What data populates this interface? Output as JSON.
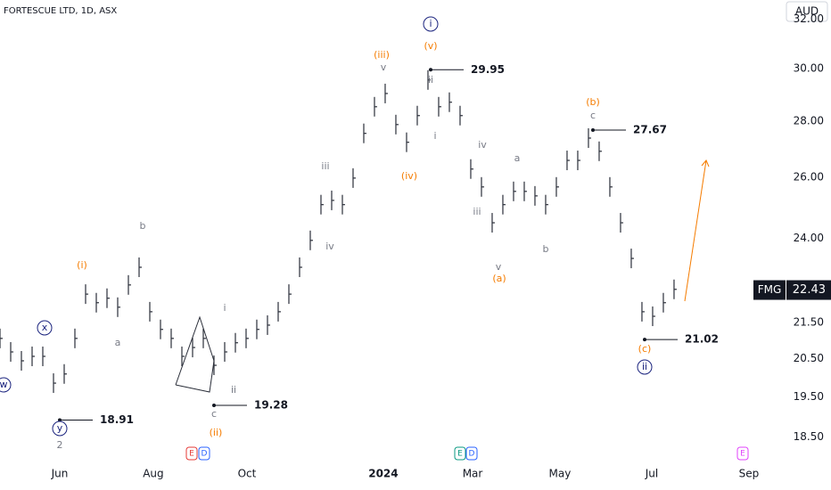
{
  "chart_data": {
    "type": "price",
    "title": "FORTESCUE LTD, 1D, ASX",
    "currency": "AUD",
    "symbol": "FMG",
    "last_price": 22.43,
    "log_scale": true,
    "color": "#2a2e39",
    "ylim": [
      17.91,
      32.82
    ],
    "yticks": [
      {
        "value": 32,
        "label": "32.00"
      },
      {
        "value": 30,
        "label": "30.00"
      },
      {
        "value": 28,
        "label": "28.00"
      },
      {
        "value": 26,
        "label": "26.00"
      },
      {
        "value": 24,
        "label": "24.00"
      },
      {
        "value": 21.5,
        "label": "21.50"
      },
      {
        "value": 20.5,
        "label": "20.50"
      },
      {
        "value": 19.5,
        "label": "19.50"
      },
      {
        "value": 18.5,
        "label": "18.50"
      }
    ],
    "xlim": [
      0,
      70.67
    ],
    "xticks": [
      {
        "value": 5.58,
        "label": "Jun"
      },
      {
        "value": 14.33,
        "label": "Aug"
      },
      {
        "value": 23.08,
        "label": "Oct"
      },
      {
        "value": 35.83,
        "label": "2024"
      },
      {
        "value": 44.17,
        "label": "Mar"
      },
      {
        "value": 52.33,
        "label": "May"
      },
      {
        "value": 60.92,
        "label": "Jul"
      },
      {
        "value": 70,
        "label": "Sep"
      }
    ],
    "values": [
      21.05,
      20.68,
      20.44,
      20.56,
      20.56,
      19.85,
      20.09,
      21.05,
      22.31,
      22.06,
      22.19,
      21.93,
      22.58,
      23.11,
      21.8,
      21.3,
      21.05,
      20.56,
      20.8,
      21.05,
      20.32,
      20.68,
      20.93,
      21.05,
      21.3,
      21.42,
      21.8,
      22.31,
      23.11,
      23.94,
      25.09,
      25.23,
      25.09,
      25.98,
      27.55,
      28.53,
      29.03,
      27.87,
      27.23,
      28.2,
      29.55,
      28.53,
      28.7,
      28.2,
      26.29,
      25.68,
      24.5,
      25.09,
      25.53,
      25.53,
      25.38,
      25.09,
      25.68,
      26.59,
      26.59,
      27.38,
      26.91,
      25.68,
      24.5,
      23.38,
      21.8,
      21.67,
      22.06,
      22.45
    ],
    "price_labels": [
      29.95,
      27.67,
      21.02,
      19.28,
      18.91
    ],
    "annotations": [
      {
        "text": "i",
        "color": "#1a237e",
        "circled": true
      },
      {
        "text": "x",
        "color": "#1a237e",
        "circled": true
      },
      {
        "text": "w",
        "color": "#1a237e",
        "circled": true
      },
      {
        "text": "y",
        "color": "#1a237e",
        "circled": true
      },
      {
        "text": "ii",
        "color": "#1a237e",
        "circled": true
      },
      {
        "text": "(iii)",
        "color": "#f57c00",
        "circled": false
      },
      {
        "text": "(v)",
        "color": "#f57c00",
        "circled": false
      },
      {
        "text": "(iv)",
        "color": "#f57c00",
        "circled": false
      },
      {
        "text": "(i)",
        "color": "#f57c00",
        "circled": false
      },
      {
        "text": "(ii)",
        "color": "#f57c00",
        "circled": false
      },
      {
        "text": "(a)",
        "color": "#f57c00",
        "circled": false
      },
      {
        "text": "(b)",
        "color": "#f57c00",
        "circled": false
      },
      {
        "text": "(c)",
        "color": "#f57c00",
        "circled": false
      },
      {
        "text": "v",
        "color": "#787b86",
        "circled": false
      },
      {
        "text": "ii",
        "color": "#787b86",
        "circled": false
      },
      {
        "text": "i",
        "color": "#787b86",
        "circled": false
      },
      {
        "text": "iii",
        "color": "#787b86",
        "circled": false
      },
      {
        "text": "iv",
        "color": "#787b86",
        "circled": false
      },
      {
        "text": "iv",
        "color": "#787b86",
        "circled": false
      },
      {
        "text": "iii",
        "color": "#787b86",
        "circled": false
      },
      {
        "text": "a",
        "color": "#787b86",
        "circled": false
      },
      {
        "text": "v",
        "color": "#787b86",
        "circled": false
      },
      {
        "text": "b",
        "color": "#787b86",
        "circled": false
      },
      {
        "text": "c",
        "color": "#787b86",
        "circled": false
      },
      {
        "text": "b",
        "color": "#787b86",
        "circled": false
      },
      {
        "text": "a",
        "color": "#787b86",
        "circled": false
      },
      {
        "text": "i",
        "color": "#787b86",
        "circled": false
      },
      {
        "text": "ii",
        "color": "#787b86",
        "circled": false
      },
      {
        "text": "c",
        "color": "#787b86",
        "circled": false
      },
      {
        "text": "2",
        "color": "#787b86",
        "circled": false
      }
    ],
    "events": [
      {
        "label": "E",
        "color": "#e53935"
      },
      {
        "label": "D",
        "color": "#2962ff"
      },
      {
        "label": "E",
        "color": "#089981"
      },
      {
        "label": "D",
        "color": "#2962ff"
      },
      {
        "label": "E",
        "color": "#e040fb"
      }
    ]
  }
}
